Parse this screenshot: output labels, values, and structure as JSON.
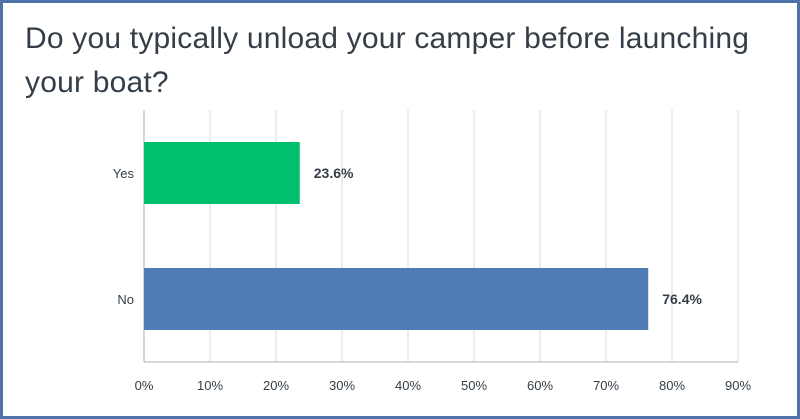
{
  "chart_data": {
    "type": "bar",
    "orientation": "horizontal",
    "title": "Do you typically unload your camper before launching your boat?",
    "categories": [
      "Yes",
      "No"
    ],
    "values": [
      23.6,
      76.4
    ],
    "data_labels": [
      "23.6%",
      "76.4%"
    ],
    "colors": [
      "#00bf6f",
      "#507cb6"
    ],
    "xlim": [
      0,
      90
    ],
    "x_ticks": [
      0,
      10,
      20,
      30,
      40,
      50,
      60,
      70,
      80,
      90
    ],
    "x_tick_labels": [
      "0%",
      "10%",
      "20%",
      "30%",
      "40%",
      "50%",
      "60%",
      "70%",
      "80%",
      "90%"
    ],
    "xlabel": "",
    "ylabel": "",
    "grid": "vertical",
    "legend": "none"
  },
  "colors": {
    "border": "#4f73a8",
    "grid": "#d9d9d9",
    "text": "#333e48"
  }
}
